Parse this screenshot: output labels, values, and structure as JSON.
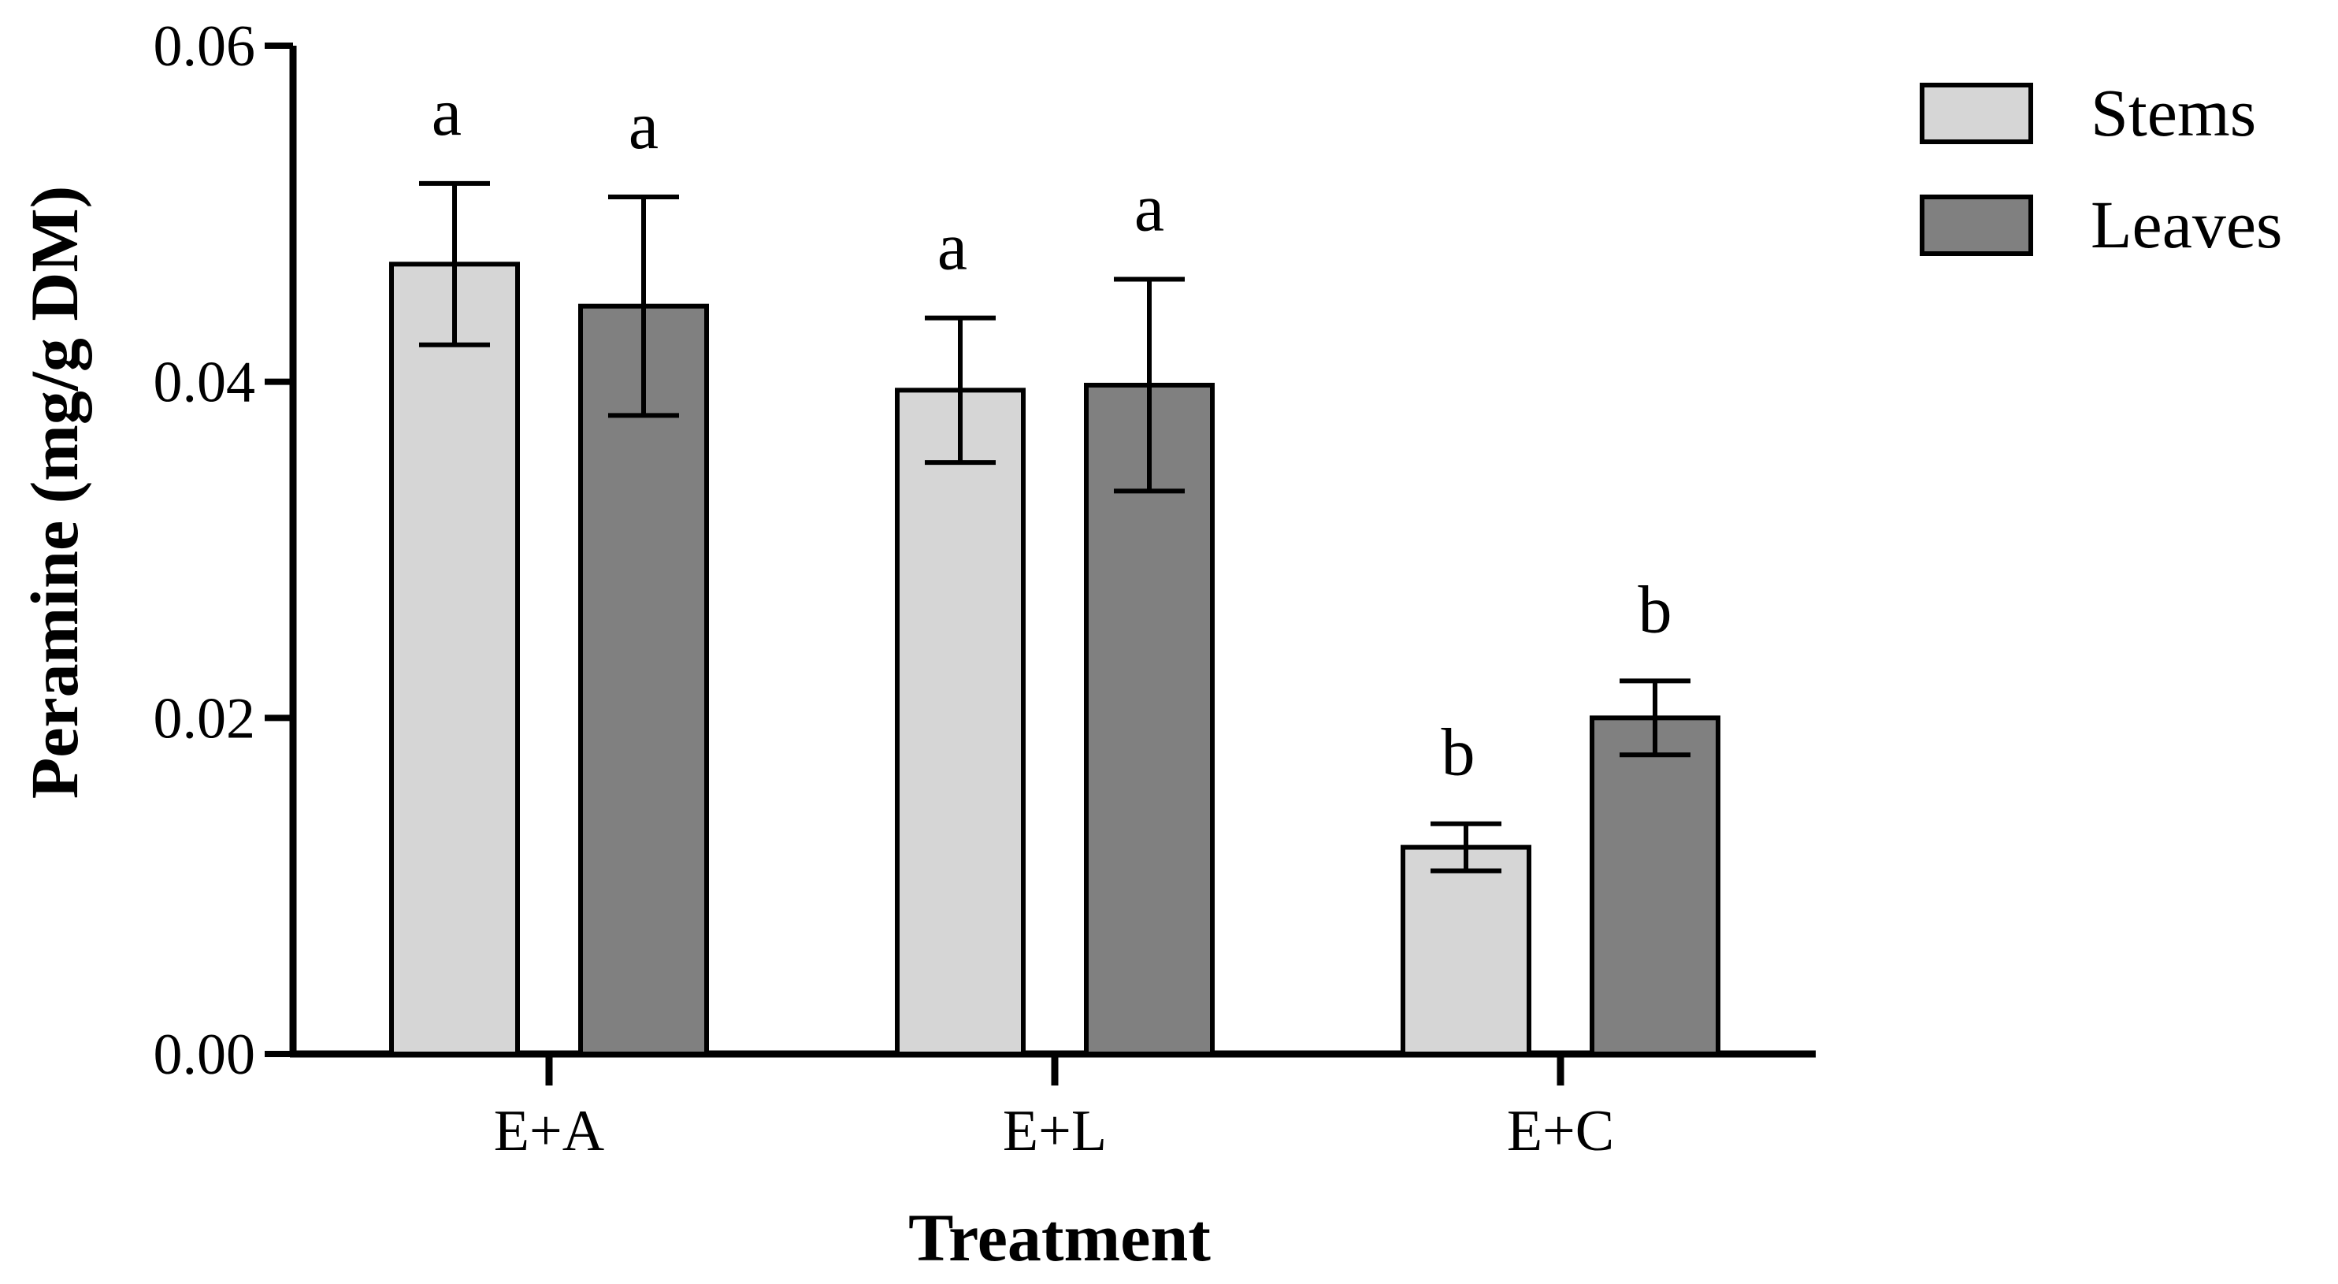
{
  "chart_data": {
    "type": "bar",
    "xlabel": "Treatment",
    "ylabel": "Peramine (mg/g DM)",
    "ylim": [
      0,
      0.06
    ],
    "yticks": [
      "0.00",
      "0.02",
      "0.04",
      "0.06"
    ],
    "ytick_values": [
      0,
      0.02,
      0.04,
      0.06
    ],
    "categories": [
      "E+A",
      "E+L",
      "E+C"
    ],
    "series": [
      {
        "name": "Stems",
        "color": "#d6d6d6",
        "values": [
          0.047,
          0.0395,
          0.0123
        ],
        "errors": [
          0.0048,
          0.0043,
          0.0014
        ],
        "letters": [
          "a",
          "a",
          "b"
        ]
      },
      {
        "name": "Leaves",
        "color": "#808080",
        "values": [
          0.0445,
          0.0398,
          0.02
        ],
        "errors": [
          0.0065,
          0.0063,
          0.0022
        ],
        "letters": [
          "a",
          "a",
          "b"
        ]
      }
    ],
    "legend_position": "top-right",
    "grid": false
  }
}
